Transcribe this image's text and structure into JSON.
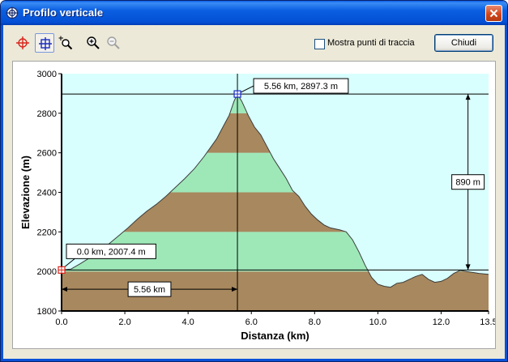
{
  "window": {
    "title": "Profilo verticale",
    "close_symbol": "x"
  },
  "toolbar": {
    "tools": [
      {
        "icon": "red-crosshair-icon",
        "pressed": false
      },
      {
        "icon": "blue-crosshair-icon",
        "pressed": true
      },
      {
        "icon": "zoom-select-icon",
        "pressed": false
      },
      {
        "icon": "zoom-in-icon",
        "pressed": false
      },
      {
        "icon": "zoom-out-icon",
        "pressed": false,
        "disabled": true
      }
    ],
    "show_track_points_label": "Mostra punti di traccia",
    "show_track_points_checked": false,
    "close_label": "Chiudi"
  },
  "chart_data": {
    "type": "area",
    "xlabel": "Distanza  (km)",
    "ylabel": "Elevazione  (m)",
    "xlim": [
      0,
      13.5
    ],
    "ylim": [
      1800,
      3000
    ],
    "x_ticks": [
      "0.0",
      "2.0",
      "4.0",
      "6.0",
      "8.0",
      "10.0",
      "12.0",
      "13.5"
    ],
    "y_ticks": [
      "1800",
      "2000",
      "2200",
      "2400",
      "2600",
      "2800",
      "3000"
    ],
    "band_colors": [
      "#a8885e",
      "#9ee8b8"
    ],
    "background_color": "#d8fffd",
    "band_height_m": 200,
    "profile": [
      [
        0.0,
        2007.4
      ],
      [
        0.3,
        2012
      ],
      [
        0.6,
        2040
      ],
      [
        0.9,
        2070
      ],
      [
        1.2,
        2100
      ],
      [
        1.5,
        2140
      ],
      [
        1.8,
        2180
      ],
      [
        2.1,
        2220
      ],
      [
        2.4,
        2265
      ],
      [
        2.7,
        2305
      ],
      [
        3.0,
        2340
      ],
      [
        3.3,
        2380
      ],
      [
        3.6,
        2425
      ],
      [
        3.9,
        2470
      ],
      [
        4.2,
        2520
      ],
      [
        4.5,
        2580
      ],
      [
        4.7,
        2625
      ],
      [
        4.9,
        2670
      ],
      [
        5.1,
        2730
      ],
      [
        5.3,
        2790
      ],
      [
        5.45,
        2860
      ],
      [
        5.56,
        2897.3
      ],
      [
        5.7,
        2860
      ],
      [
        5.9,
        2790
      ],
      [
        6.1,
        2730
      ],
      [
        6.3,
        2690
      ],
      [
        6.5,
        2630
      ],
      [
        6.7,
        2570
      ],
      [
        6.9,
        2520
      ],
      [
        7.1,
        2470
      ],
      [
        7.3,
        2410
      ],
      [
        7.5,
        2380
      ],
      [
        7.7,
        2330
      ],
      [
        7.9,
        2290
      ],
      [
        8.1,
        2260
      ],
      [
        8.3,
        2235
      ],
      [
        8.5,
        2220
      ],
      [
        8.8,
        2210
      ],
      [
        9.0,
        2200
      ],
      [
        9.2,
        2160
      ],
      [
        9.4,
        2100
      ],
      [
        9.6,
        2030
      ],
      [
        9.8,
        1970
      ],
      [
        10.0,
        1935
      ],
      [
        10.2,
        1925
      ],
      [
        10.4,
        1920
      ],
      [
        10.6,
        1940
      ],
      [
        10.8,
        1945
      ],
      [
        11.0,
        1960
      ],
      [
        11.2,
        1975
      ],
      [
        11.4,
        1985
      ],
      [
        11.6,
        1960
      ],
      [
        11.8,
        1945
      ],
      [
        12.0,
        1950
      ],
      [
        12.2,
        1965
      ],
      [
        12.4,
        1990
      ],
      [
        12.6,
        2005
      ],
      [
        12.8,
        2000
      ],
      [
        13.0,
        1995
      ],
      [
        13.2,
        1990
      ],
      [
        13.5,
        1985
      ]
    ],
    "start_point": {
      "x": 0.0,
      "y": 2007.4,
      "label": "0.0 km, 2007.4 m"
    },
    "cursor_point": {
      "x": 5.56,
      "y": 2897.3,
      "label": "5.56 km, 2897.3 m"
    },
    "distance_annotation": {
      "from": 0.0,
      "to": 5.56,
      "label": "5.56 km"
    },
    "elevation_annotation": {
      "x": 12.85,
      "from": 2007.4,
      "to": 2897.3,
      "label": "890 m"
    }
  }
}
